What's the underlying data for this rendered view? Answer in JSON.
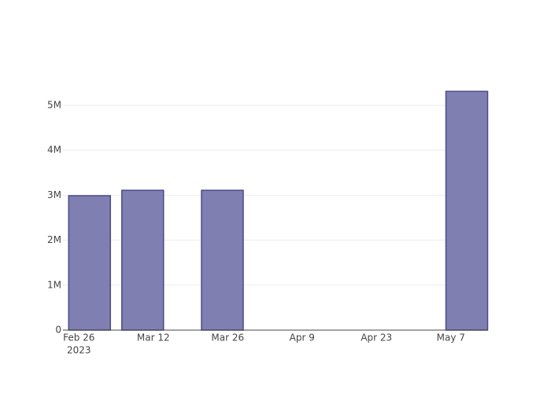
{
  "chart_data": {
    "type": "bar",
    "x": [
      "2023-02-28",
      "2023-03-10",
      "2023-03-25",
      "2023-05-10"
    ],
    "values": [
      2990000,
      3110000,
      3110000,
      5310000
    ],
    "color": "#7f7fb1",
    "line_color": "#4b4b8c",
    "xlim": [
      "2023-02-23",
      "2023-05-14"
    ],
    "xticks": [
      {
        "value": "2023-02-26",
        "label": "Feb 26",
        "year": "2023"
      },
      {
        "value": "2023-03-12",
        "label": "Mar 12"
      },
      {
        "value": "2023-03-26",
        "label": "Mar 26"
      },
      {
        "value": "2023-04-09",
        "label": "Apr 9"
      },
      {
        "value": "2023-04-23",
        "label": "Apr 23"
      },
      {
        "value": "2023-05-07",
        "label": "May 7"
      }
    ],
    "ylim": [
      0,
      5594000
    ],
    "yticks": [
      0,
      {
        "value": 1000000,
        "label": "1M"
      },
      {
        "value": 2000000,
        "label": "2M"
      },
      {
        "value": 3000000,
        "label": "3M"
      },
      {
        "value": 4000000,
        "label": "4M"
      },
      {
        "value": 5000000,
        "label": "5M"
      }
    ],
    "grid": true
  }
}
